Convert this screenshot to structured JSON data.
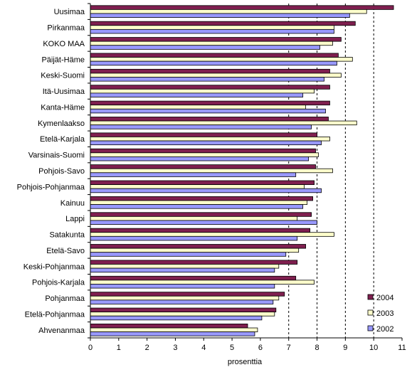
{
  "chart_data": {
    "type": "bar",
    "orientation": "horizontal",
    "categories": [
      "Uusimaa",
      "Pirkanmaa",
      "KOKO MAA",
      "Päijät-Häme",
      "Keski-Suomi",
      "Itä-Uusimaa",
      "Kanta-Häme",
      "Kymenlaakso",
      "Etelä-Karjala",
      "Varsinais-Suomi",
      "Pohjois-Savo",
      "Pohjois-Pohjanmaa",
      "Kainuu",
      "Lappi",
      "Satakunta",
      "Etelä-Savo",
      "Keski-Pohjanmaa",
      "Pohjois-Karjala",
      "Pohjanmaa",
      "Etelä-Pohjanmaa",
      "Ahvenanmaa"
    ],
    "series": [
      {
        "name": "2004",
        "color": "#7f1f4f",
        "values": [
          10.7,
          9.35,
          8.85,
          8.75,
          8.45,
          8.45,
          8.45,
          8.4,
          8.0,
          7.95,
          7.95,
          7.9,
          7.85,
          7.8,
          7.75,
          7.6,
          7.3,
          7.25,
          6.85,
          6.55,
          5.55
        ]
      },
      {
        "name": "2003",
        "color": "#ffffcc",
        "values": [
          9.75,
          8.6,
          8.55,
          9.25,
          8.85,
          7.9,
          7.6,
          9.4,
          8.45,
          8.05,
          8.55,
          7.55,
          7.65,
          7.3,
          8.6,
          7.35,
          6.65,
          7.9,
          6.65,
          6.5,
          5.9
        ]
      },
      {
        "name": "2002",
        "color": "#9999ff",
        "values": [
          9.15,
          8.6,
          8.1,
          8.7,
          8.25,
          7.5,
          8.3,
          7.8,
          8.15,
          7.7,
          7.25,
          8.15,
          7.5,
          8.0,
          7.3,
          6.9,
          6.5,
          6.5,
          6.45,
          6.05,
          5.8
        ]
      }
    ],
    "xlabel": "prosenttia",
    "xlim": [
      0,
      11
    ],
    "xticks": [
      "0",
      "1",
      "2",
      "3",
      "4",
      "5",
      "6",
      "7",
      "8",
      "9",
      "10",
      "11"
    ],
    "gridlines_dashed_at": [
      7,
      8,
      9,
      10
    ],
    "legend_position": "bottom-right",
    "legend_order": [
      "2004",
      "2003",
      "2002"
    ]
  }
}
